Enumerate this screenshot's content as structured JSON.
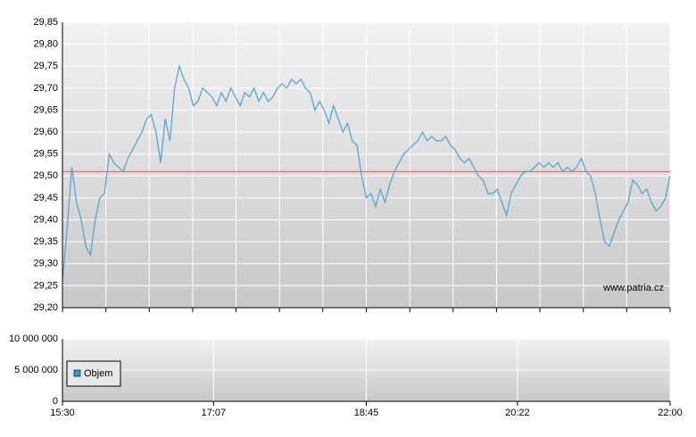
{
  "chart_data": [
    {
      "type": "line",
      "xlim": [
        930,
        1320
      ],
      "xgrid": [
        930,
        957.9,
        985.7,
        1013.6,
        1041.4,
        1069.3,
        1097.1,
        1125,
        1152.9,
        1180.7,
        1208.6,
        1236.4,
        1264.3,
        1292.1,
        1320
      ],
      "ylim": [
        29.2,
        29.85
      ],
      "yticks": [
        {
          "value": 29.2,
          "label": "29,20"
        },
        {
          "value": 29.25,
          "label": "29,25"
        },
        {
          "value": 29.3,
          "label": "29,30"
        },
        {
          "value": 29.35,
          "label": "29,35"
        },
        {
          "value": 29.4,
          "label": "29,40"
        },
        {
          "value": 29.45,
          "label": "29,45"
        },
        {
          "value": 29.5,
          "label": "29,50"
        },
        {
          "value": 29.55,
          "label": "29,55"
        },
        {
          "value": 29.6,
          "label": "29,60"
        },
        {
          "value": 29.65,
          "label": "29,65"
        },
        {
          "value": 29.7,
          "label": "29,70"
        },
        {
          "value": 29.75,
          "label": "29,75"
        },
        {
          "value": 29.8,
          "label": "29,80"
        },
        {
          "value": 29.85,
          "label": "29,85"
        }
      ],
      "grid": true,
      "reference_line": {
        "value": 29.51,
        "color": "#e06060"
      },
      "annotation": "www.patria.cz",
      "x": [
        930,
        933,
        936,
        939,
        942,
        945,
        948,
        951,
        954,
        957,
        960,
        963,
        966,
        969,
        972,
        975,
        978,
        981,
        984,
        987,
        990,
        993,
        996,
        999,
        1002,
        1005,
        1008,
        1011,
        1014,
        1017,
        1020,
        1023,
        1026,
        1029,
        1032,
        1035,
        1038,
        1041,
        1044,
        1047,
        1050,
        1053,
        1056,
        1059,
        1062,
        1065,
        1068,
        1071,
        1074,
        1077,
        1080,
        1083,
        1086,
        1089,
        1092,
        1095,
        1098,
        1101,
        1104,
        1107,
        1110,
        1113,
        1116,
        1119,
        1122,
        1125,
        1128,
        1131,
        1134,
        1137,
        1140,
        1143,
        1146,
        1149,
        1152,
        1155,
        1158,
        1161,
        1164,
        1167,
        1170,
        1173,
        1176,
        1179,
        1182,
        1185,
        1188,
        1191,
        1194,
        1197,
        1200,
        1203,
        1206,
        1209,
        1212,
        1215,
        1218,
        1221,
        1224,
        1227,
        1230,
        1233,
        1236,
        1239,
        1242,
        1245,
        1248,
        1251,
        1254,
        1257,
        1260,
        1263,
        1266,
        1269,
        1272,
        1275,
        1278,
        1281,
        1284,
        1287,
        1290,
        1293,
        1296,
        1299,
        1302,
        1305,
        1308,
        1311,
        1314,
        1317,
        1320
      ],
      "series": [
        {
          "color": "#4aa3cc",
          "values": [
            29.26,
            29.38,
            29.52,
            29.44,
            29.4,
            29.34,
            29.32,
            29.4,
            29.45,
            29.46,
            29.55,
            29.53,
            29.52,
            29.51,
            29.54,
            29.56,
            29.58,
            29.6,
            29.63,
            29.64,
            29.6,
            29.53,
            29.63,
            29.58,
            29.7,
            29.75,
            29.72,
            29.7,
            29.66,
            29.67,
            29.7,
            29.69,
            29.68,
            29.66,
            29.69,
            29.67,
            29.7,
            29.68,
            29.66,
            29.69,
            29.68,
            29.7,
            29.67,
            29.69,
            29.67,
            29.68,
            29.7,
            29.71,
            29.7,
            29.72,
            29.71,
            29.72,
            29.7,
            29.69,
            29.65,
            29.67,
            29.65,
            29.62,
            29.66,
            29.63,
            29.6,
            29.62,
            29.58,
            29.57,
            29.5,
            29.45,
            29.46,
            29.43,
            29.47,
            29.44,
            29.48,
            29.51,
            29.53,
            29.55,
            29.56,
            29.57,
            29.58,
            29.6,
            29.58,
            29.59,
            29.58,
            29.58,
            29.59,
            29.57,
            29.56,
            29.54,
            29.53,
            29.54,
            29.52,
            29.5,
            29.49,
            29.46,
            29.46,
            29.47,
            29.44,
            29.41,
            29.46,
            29.48,
            29.5,
            29.51,
            29.51,
            29.52,
            29.53,
            29.52,
            29.53,
            29.52,
            29.53,
            29.51,
            29.52,
            29.51,
            29.52,
            29.54,
            29.51,
            29.5,
            29.46,
            29.4,
            29.35,
            29.34,
            29.37,
            29.4,
            29.42,
            29.44,
            29.49,
            29.48,
            29.46,
            29.47,
            29.44,
            29.42,
            29.43,
            29.45,
            29.5
          ]
        }
      ]
    },
    {
      "type": "bar",
      "xlim": [
        930,
        1320
      ],
      "xticks": [
        {
          "value": 930,
          "label": "15:30"
        },
        {
          "value": 1027,
          "label": "17:07"
        },
        {
          "value": 1125,
          "label": "18:45"
        },
        {
          "value": 1222,
          "label": "20:22"
        },
        {
          "value": 1320,
          "label": "22:00"
        }
      ],
      "ylim": [
        0,
        10000000
      ],
      "yticks": [
        0,
        {
          "value": 5000000,
          "label": "5 000 000"
        },
        {
          "value": 10000000,
          "label": "10 000 000"
        }
      ],
      "grid": true,
      "series": [
        {
          "name": "Objem",
          "color": "#3399cc",
          "values": []
        }
      ]
    }
  ]
}
